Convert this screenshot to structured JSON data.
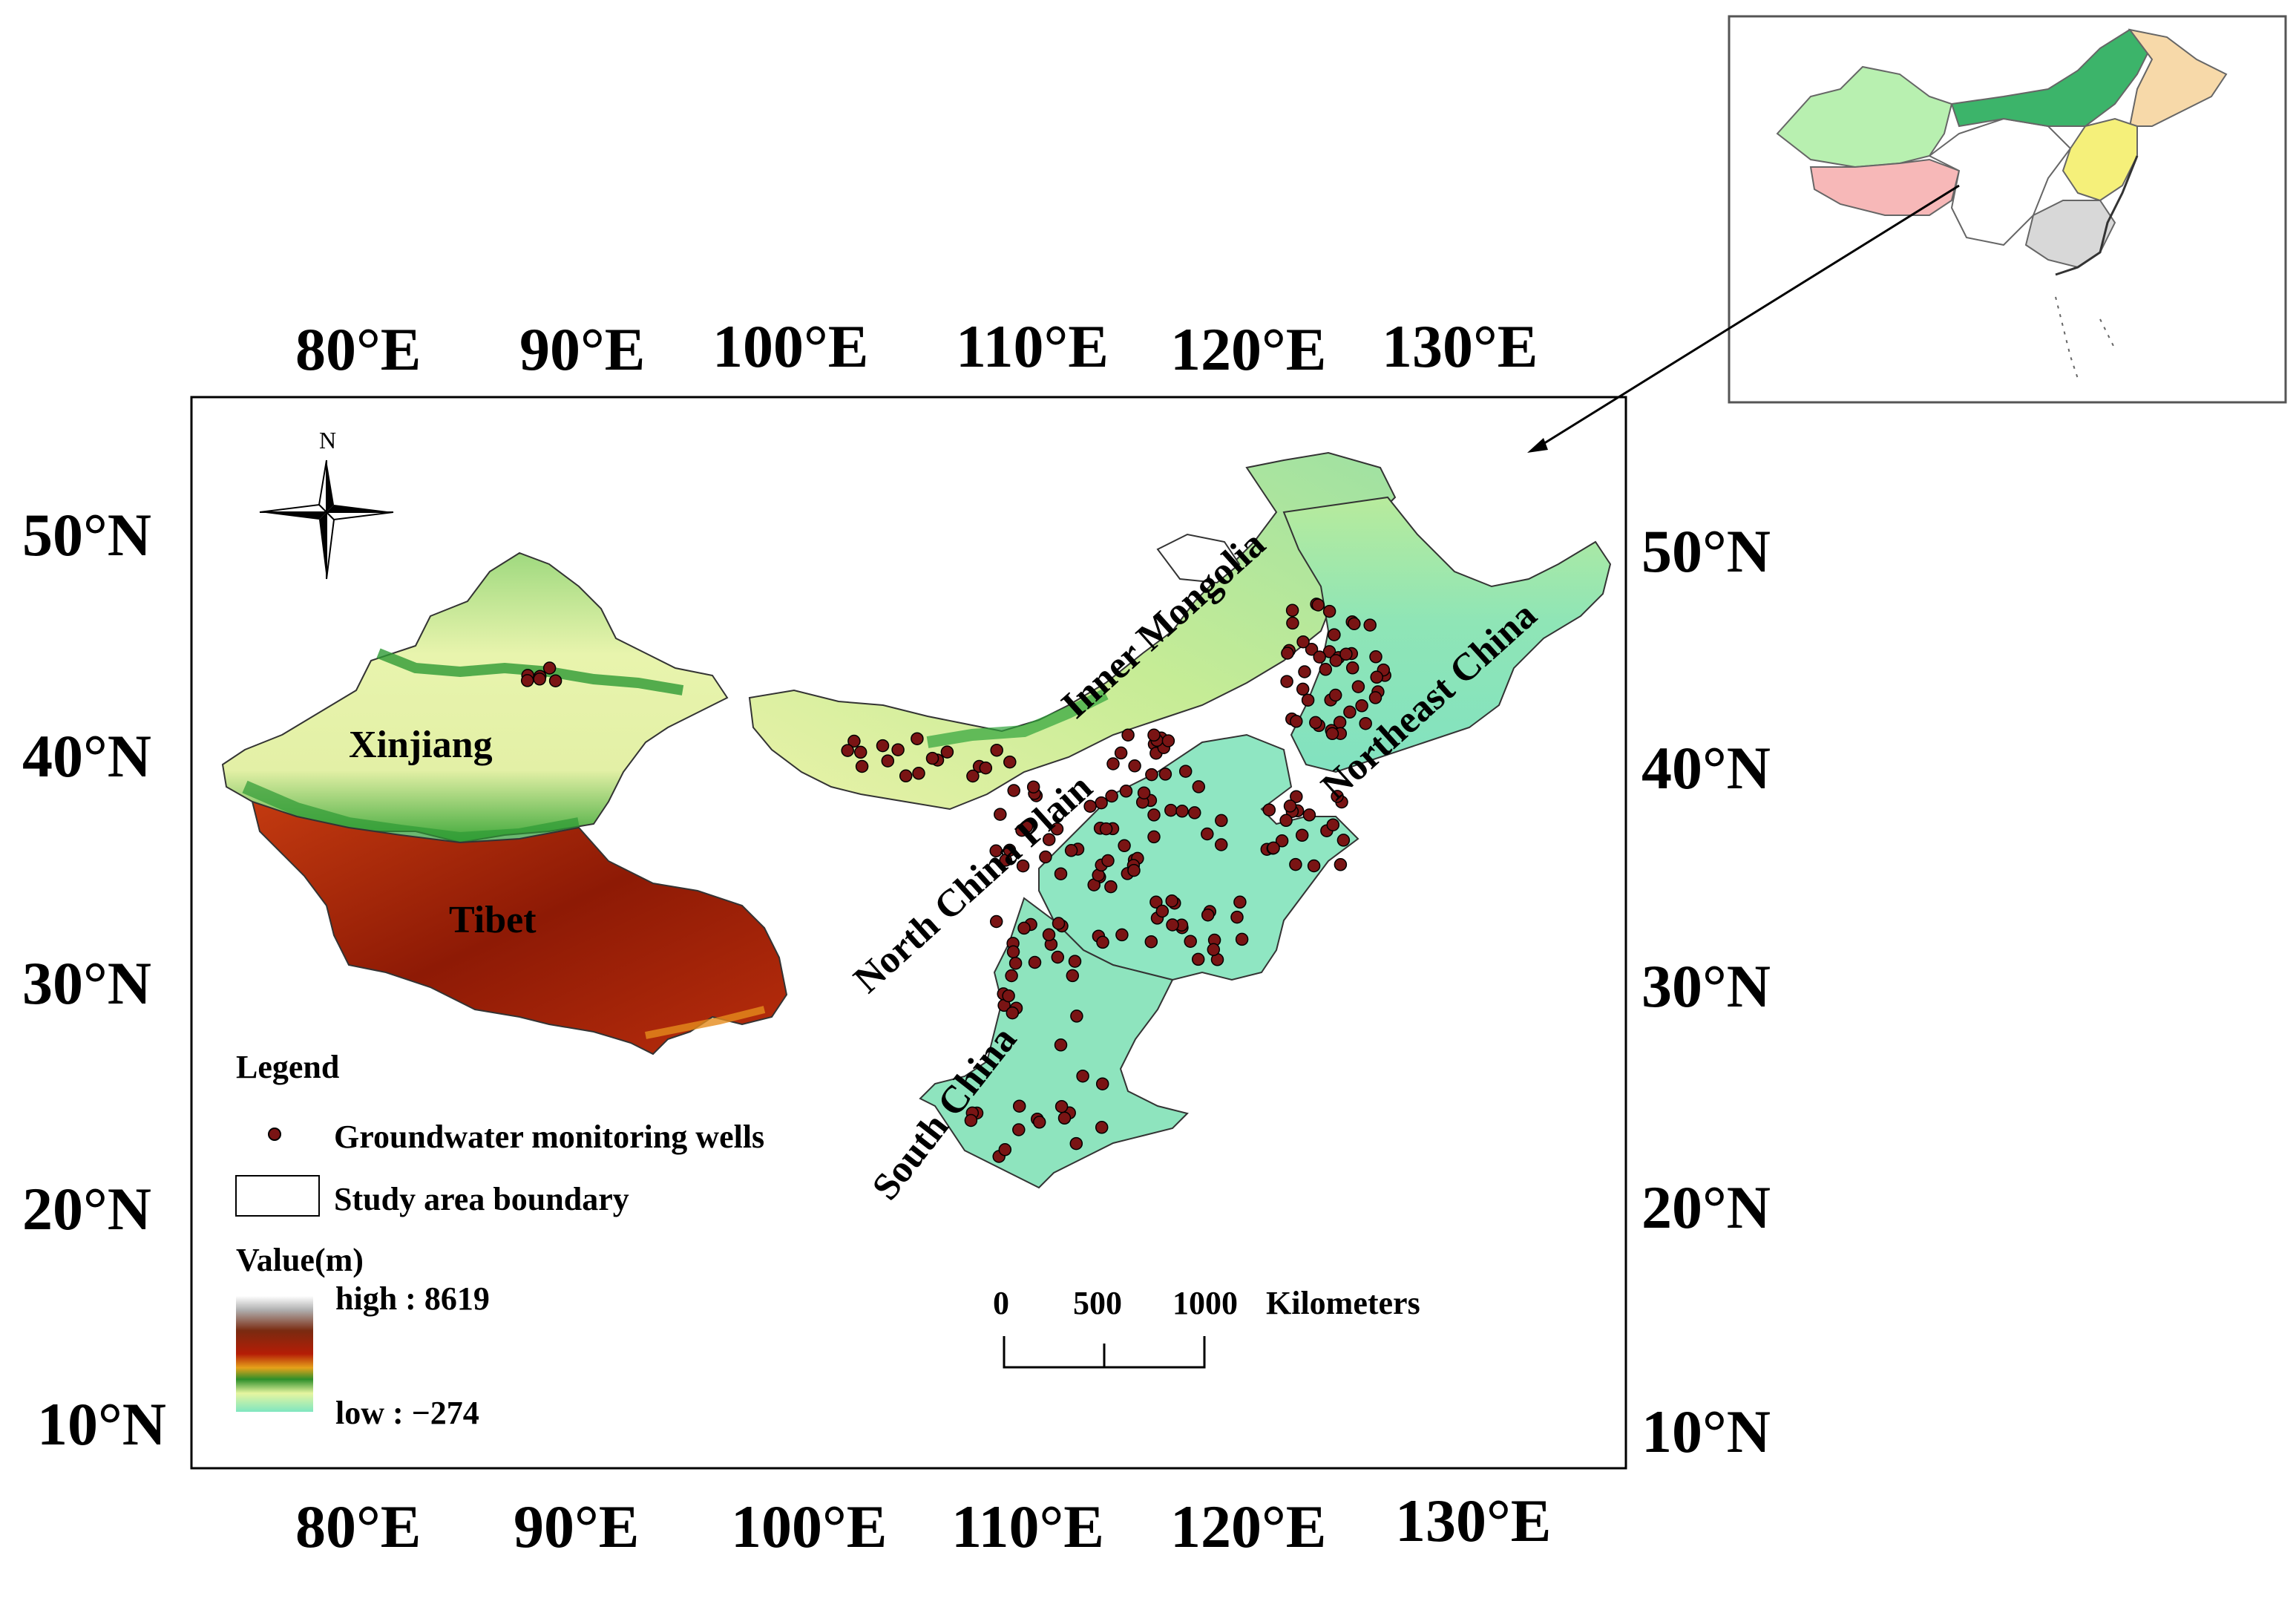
{
  "lon_labels": [
    "80°E",
    "90°E",
    "100°E",
    "110°E",
    "120°E",
    "130°E"
  ],
  "lat_labels": [
    "50°N",
    "40°N",
    "30°N",
    "20°N",
    "10°N"
  ],
  "compass": {
    "north_label": "N"
  },
  "regions": {
    "xinjiang": "Xinjiang",
    "tibet": "Tibet",
    "inner_mongolia": "Inner Mongolia",
    "northeast_china": "Northeast China",
    "north_china_plain": "North China Plain",
    "south_china": "South China"
  },
  "legend": {
    "title": "Legend",
    "wells": "Groundwater monitoring wells",
    "boundary": "Study area boundary",
    "value_title": "Value(m)",
    "high": "high : 8619",
    "low": "low : −274"
  },
  "scale_bar": {
    "ticks": [
      "0",
      "500",
      "1000"
    ],
    "unit": "Kilometers"
  },
  "colors": {
    "well": "#7a1414",
    "lowland": "#7fe6c0",
    "plains": "#c9ee9a",
    "mid": "#e7f2a8",
    "green": "#2fa43a",
    "plateau": "#9c1f08",
    "inset_xinjiang": "#b8f0b0",
    "inset_tibet": "#f7b8b8",
    "inset_mongolia": "#3cb46a",
    "inset_northeast": "#f7d9a9",
    "inset_northchina": "#f5f07a",
    "inset_south": "#d8d8d8"
  }
}
